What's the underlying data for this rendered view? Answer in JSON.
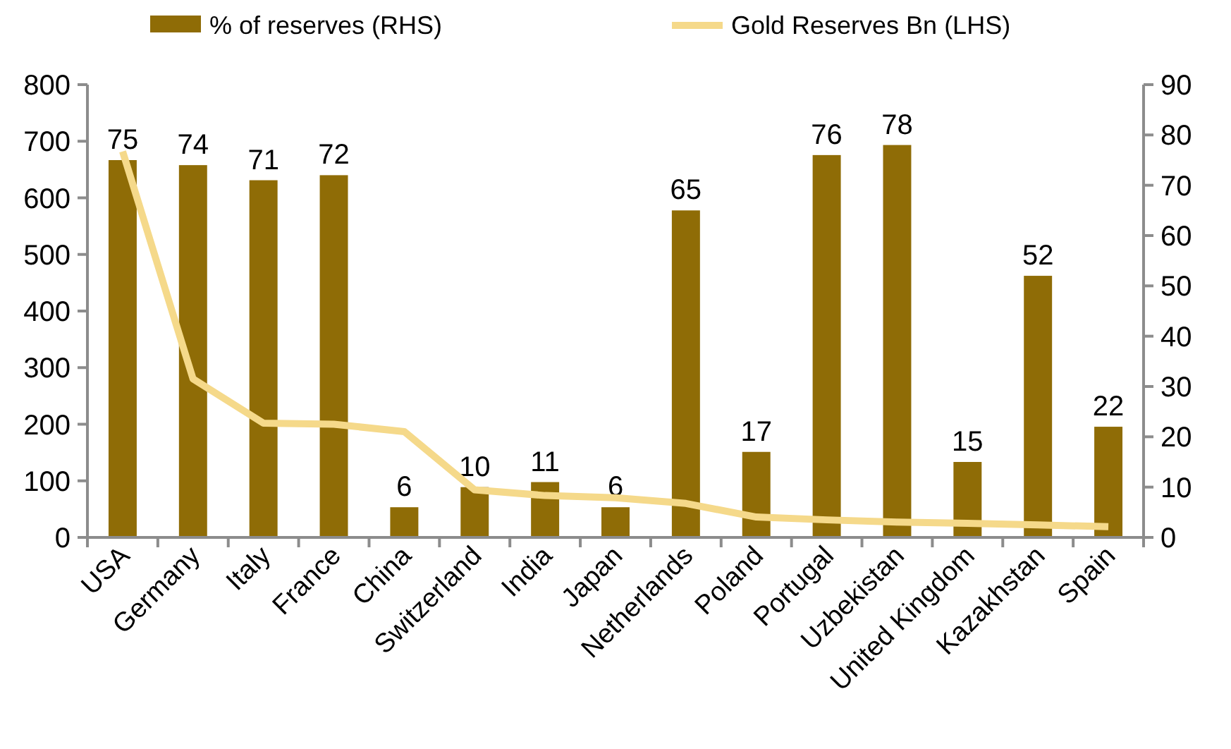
{
  "chart_data": {
    "type": "bar",
    "categories": [
      "USA",
      "Germany",
      "Italy",
      "France",
      "China",
      "Switzerland",
      "India",
      "Japan",
      "Netherlands",
      "Poland",
      "Portugal",
      "Uzbekistan",
      "United Kingdom",
      "Kazakhstan",
      "Spain"
    ],
    "series": [
      {
        "name": "% of reserves (RHS)",
        "axis": "y2",
        "color": "#8f6c06",
        "values": [
          75,
          74,
          71,
          72,
          6,
          10,
          11,
          6,
          65,
          17,
          76,
          78,
          15,
          52,
          22
        ],
        "value_labels": [
          "75",
          "74",
          "71",
          "72",
          "6",
          "10",
          "11",
          "6",
          "65",
          "17",
          "76",
          "78",
          "15",
          "52",
          "22"
        ]
      },
      {
        "name": "Gold Reserves Bn (LHS)",
        "type": "line",
        "color": "#f5d98a",
        "values": [
          682,
          280,
          202,
          200,
          187,
          84,
          74,
          70,
          60,
          36,
          31,
          27,
          25,
          22,
          19
        ]
      }
    ],
    "ylim": [
      0,
      800
    ],
    "yticks": [
      0,
      100,
      200,
      300,
      400,
      500,
      600,
      700,
      800
    ],
    "y2lim": [
      0,
      90
    ],
    "y2ticks": [
      0,
      10,
      20,
      30,
      40,
      50,
      60,
      70,
      80,
      90
    ],
    "legend": "top",
    "grid": false
  }
}
